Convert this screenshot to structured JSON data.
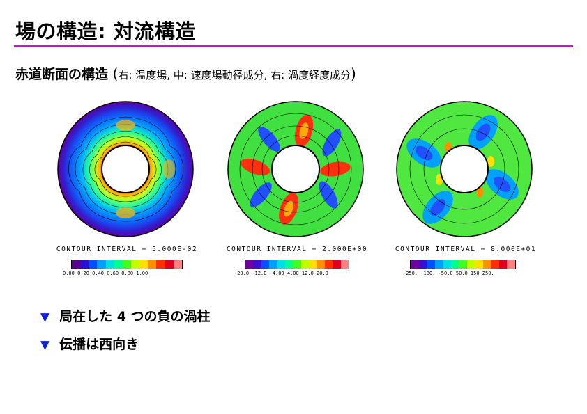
{
  "title": "場の構造: 対流構造",
  "subtitle": {
    "main": "赤道断面の構造",
    "open": "(",
    "detail": "右: 温度場, 中: 速度場動径成分, 右: 渦度経度成分",
    "close": ")"
  },
  "panels": [
    {
      "interval": "CONTOUR INTERVAL = 5.000E-02",
      "colorbar_ticks": "0.00  0.20  0.40  0.60  0.80  1.00",
      "colors": [
        "#5a0090",
        "#2a10d0",
        "#0050ff",
        "#00a0ff",
        "#00e0e0",
        "#00ff90",
        "#40ff20",
        "#c0ff00",
        "#ffe000",
        "#ff9000",
        "#ff3000",
        "#e00020",
        "#ff8080"
      ]
    },
    {
      "interval": "CONTOUR INTERVAL = 2.000E+00",
      "colorbar_ticks": "-20.0 -12.0 -4.00 4.00 12.0 20.0",
      "colors": [
        "#7000a0",
        "#3a10d0",
        "#0050ff",
        "#00a0ff",
        "#00e0e0",
        "#00ff90",
        "#40ff20",
        "#c0ff00",
        "#ffe000",
        "#ff9000",
        "#ff3000",
        "#e00020",
        "#ff8080"
      ]
    },
    {
      "interval": "CONTOUR INTERVAL = 8.000E+01",
      "colorbar_ticks": "-250. -180. -50.0 50.0  150   250.",
      "colors": [
        "#7000a0",
        "#3a10d0",
        "#0050ff",
        "#00a0ff",
        "#00e0e0",
        "#00ff90",
        "#40ff20",
        "#c0ff00",
        "#ffe000",
        "#ff9000",
        "#ff3000",
        "#e00020",
        "#ff8080"
      ]
    }
  ],
  "bullets": [
    "局在した 4 つの負の渦柱",
    "伝播は西向き"
  ],
  "bullet_marker": "▼"
}
